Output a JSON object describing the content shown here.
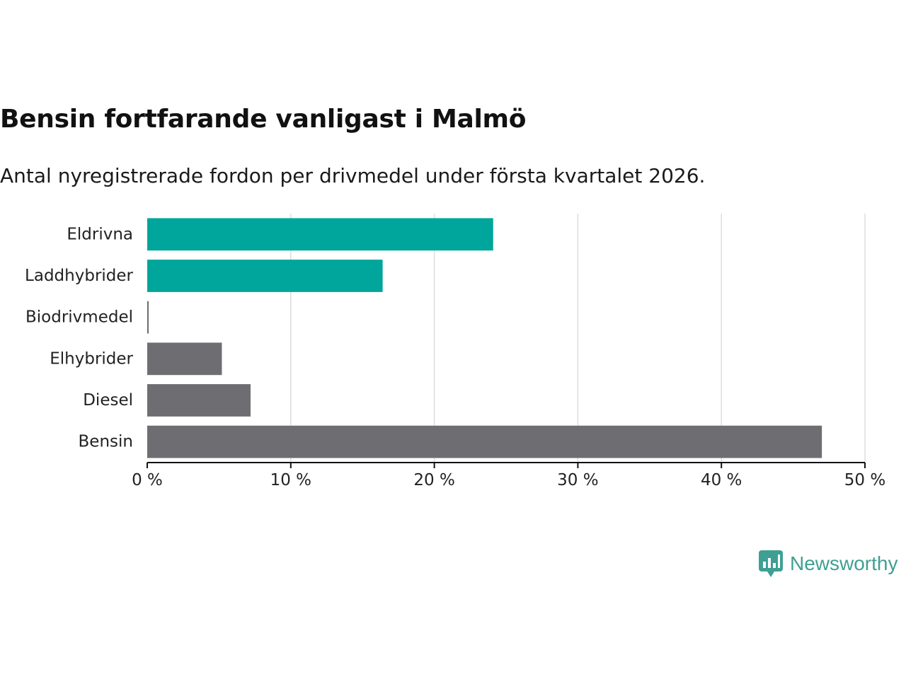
{
  "header": {
    "title": "Bensin fortfarande vanligast i Malmö",
    "subtitle": "Antal nyregistrerade fordon per drivmedel under första kvartalet 2026."
  },
  "chart_data": {
    "type": "bar",
    "orientation": "horizontal",
    "categories": [
      "Eldrivna",
      "Laddhybrider",
      "Biodrivmedel",
      "Elhybrider",
      "Diesel",
      "Bensin"
    ],
    "values": [
      24.1,
      16.4,
      0.1,
      5.2,
      7.2,
      47.0
    ],
    "colors": [
      "#00a59b",
      "#00a59b",
      "#6e6d72",
      "#6e6d72",
      "#6e6d72",
      "#6e6d72"
    ],
    "xlim": [
      0,
      50
    ],
    "xticks": [
      {
        "value": 0,
        "label": "0 %"
      },
      {
        "value": 10,
        "label": "10 %"
      },
      {
        "value": 20,
        "label": "20 %"
      },
      {
        "value": 30,
        "label": "30 %"
      },
      {
        "value": 40,
        "label": "40 %"
      },
      {
        "value": 50,
        "label": "50 %"
      }
    ],
    "grid": true,
    "gridColor": "#dddddd",
    "axisColor": "#111111"
  },
  "branding": {
    "name": "Newsworthy",
    "color": "#3f9f93"
  }
}
